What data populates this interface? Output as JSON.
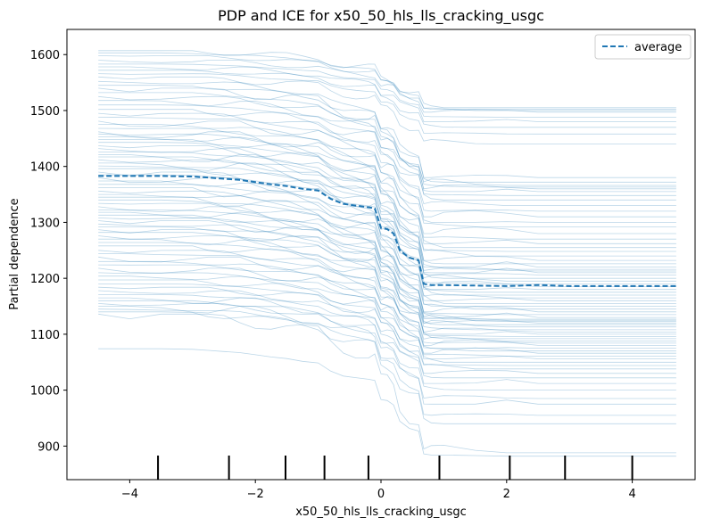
{
  "chart_data": {
    "type": "line",
    "title": "PDP and ICE for x50_50_hls_lls_cracking_usgc",
    "xlabel": "x50_50_hls_lls_cracking_usgc",
    "ylabel": "Partial dependence",
    "xlim": [
      -5.0,
      5.0
    ],
    "ylim": [
      840,
      1645
    ],
    "x_ticks": [
      -4,
      -2,
      0,
      2,
      4
    ],
    "x_tick_labels": [
      "−4",
      "−2",
      "0",
      "2",
      "4"
    ],
    "y_ticks": [
      900,
      1000,
      1100,
      1200,
      1300,
      1400,
      1500,
      1600
    ],
    "y_tick_labels": [
      "900",
      "1000",
      "1100",
      "1200",
      "1300",
      "1400",
      "1500",
      "1600"
    ],
    "grid": false,
    "legend_position": "top-right",
    "x": [
      -4.5,
      -4.0,
      -3.5,
      -3.0,
      -2.75,
      -2.5,
      -2.25,
      -2.0,
      -1.75,
      -1.5,
      -1.25,
      -1.0,
      -0.8,
      -0.6,
      -0.4,
      -0.2,
      -0.1,
      0.0,
      0.1,
      0.2,
      0.3,
      0.45,
      0.6,
      0.68,
      0.8,
      1.0,
      1.5,
      2.0,
      2.5,
      3.0,
      3.5,
      4.0,
      4.5,
      4.7
    ],
    "series": [
      {
        "name": "average",
        "style": "dashed",
        "color": "#1f77b4",
        "values": [
          1383,
          1383,
          1383,
          1382,
          1380,
          1378,
          1376,
          1372,
          1368,
          1365,
          1360,
          1357,
          1342,
          1333,
          1330,
          1327,
          1325,
          1290,
          1288,
          1280,
          1250,
          1237,
          1232,
          1190,
          1188,
          1188,
          1187,
          1186,
          1188,
          1186,
          1186,
          1186,
          1186,
          1186
        ]
      }
    ],
    "ice_lines": {
      "color": "#1f77b4",
      "opacity": 0.3,
      "start_values": [
        1607,
        1603,
        1598,
        1590,
        1583,
        1578,
        1572,
        1566,
        1560,
        1552,
        1545,
        1540,
        1532,
        1525,
        1518,
        1510,
        1502,
        1495,
        1488,
        1481,
        1475,
        1468,
        1462,
        1458,
        1453,
        1448,
        1443,
        1437,
        1432,
        1426,
        1421,
        1417,
        1412,
        1406,
        1401,
        1396,
        1390,
        1385,
        1380,
        1374,
        1368,
        1362,
        1356,
        1350,
        1345,
        1340,
        1334,
        1328,
        1322,
        1318,
        1313,
        1308,
        1303,
        1297,
        1292,
        1287,
        1282,
        1276,
        1270,
        1264,
        1258,
        1250,
        1244,
        1238,
        1230,
        1224,
        1218,
        1210,
        1204,
        1197,
        1190,
        1184,
        1178,
        1171,
        1165,
        1160,
        1155,
        1150,
        1145,
        1140,
        1136,
        1074
      ],
      "end_values": [
        1505,
        1502,
        1500,
        1497,
        1488,
        1480,
        1470,
        1458,
        1440,
        1380,
        1372,
        1366,
        1363,
        1360,
        1355,
        1348,
        1340,
        1330,
        1320,
        1310,
        1300,
        1292,
        1280,
        1270,
        1262,
        1255,
        1248,
        1240,
        1232,
        1226,
        1220,
        1216,
        1213,
        1210,
        1206,
        1200,
        1195,
        1190,
        1185,
        1180,
        1175,
        1170,
        1165,
        1160,
        1155,
        1150,
        1145,
        1140,
        1135,
        1130,
        1127,
        1125,
        1123,
        1120,
        1117,
        1113,
        1108,
        1104,
        1100,
        1096,
        1092,
        1088,
        1084,
        1080,
        1075,
        1070,
        1066,
        1061,
        1056,
        1050,
        1044,
        1038,
        1030,
        1022,
        1012,
        1000,
        985,
        975,
        955,
        940,
        888,
        882
      ]
    },
    "rug": [
      -3.55,
      -2.42,
      -1.52,
      -0.9,
      -0.2,
      0.93,
      2.05,
      2.93,
      4.0
    ]
  }
}
